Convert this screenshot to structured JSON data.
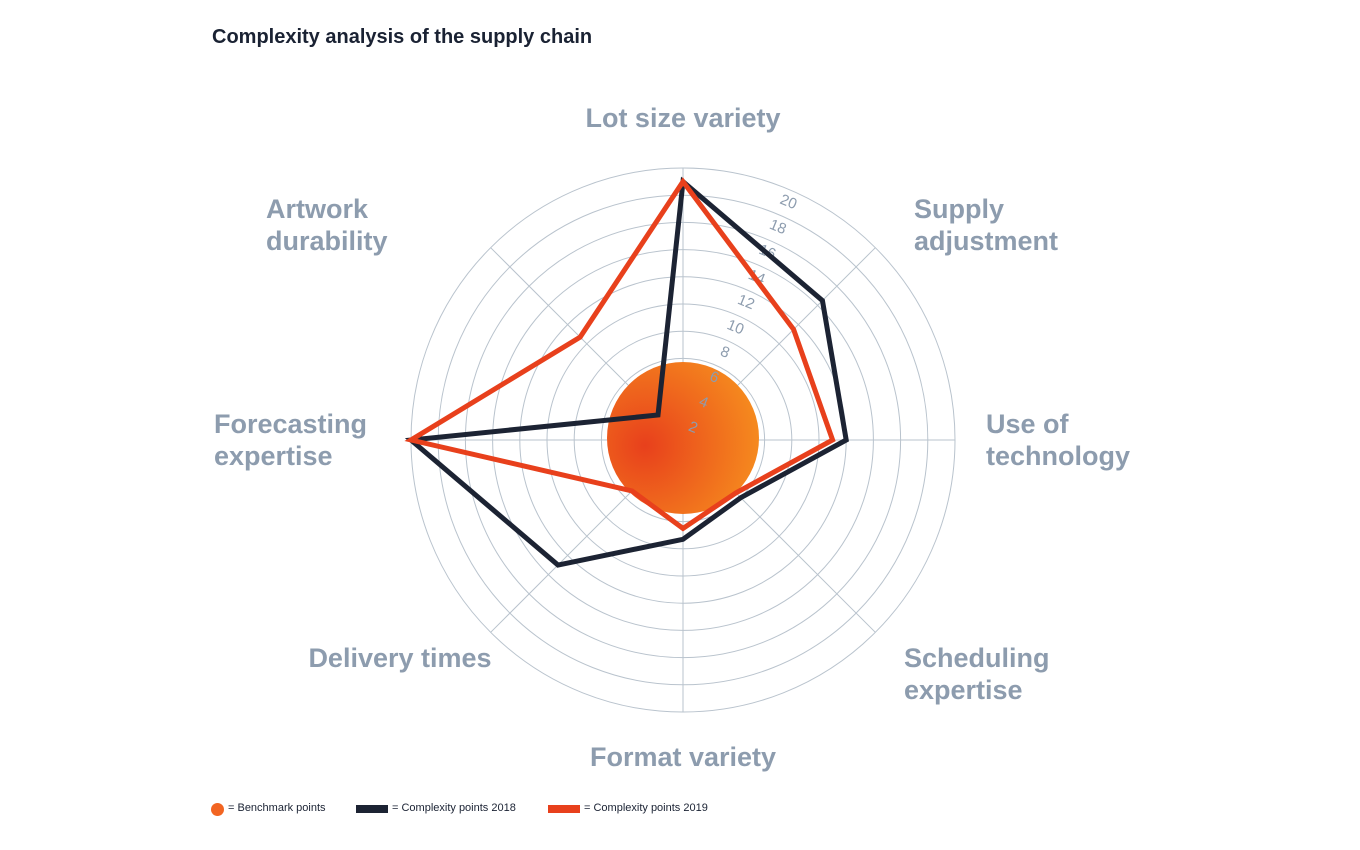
{
  "chart_data": {
    "type": "radar",
    "title": "Complexity analysis of the supply chain",
    "categories": [
      "Lot size variety",
      "Supply\nadjustment",
      "Use of\ntechnology",
      "Scheduling\nexpertise",
      "Format variety",
      "Delivery times",
      "Forecasting\nexpertise",
      "Artwork\ndurability"
    ],
    "benchmark": {
      "name": "= Benchmark points",
      "color": "#f26522",
      "value": 5
    },
    "series": [
      {
        "name": "= Complexity points 2018",
        "color": "#1c2333",
        "values": [
          19,
          14.5,
          12,
          6,
          7.3,
          13,
          20,
          2.6
        ]
      },
      {
        "name": "= Complexity points 2019",
        "color": "#e8401c",
        "values": [
          19,
          11.5,
          11,
          5.5,
          6.5,
          5.3,
          20,
          10.7
        ]
      }
    ],
    "ylim": [
      0,
      20
    ],
    "yticks": [
      2,
      4,
      6,
      8,
      10,
      12,
      14,
      16,
      18,
      20
    ],
    "grid": true
  }
}
